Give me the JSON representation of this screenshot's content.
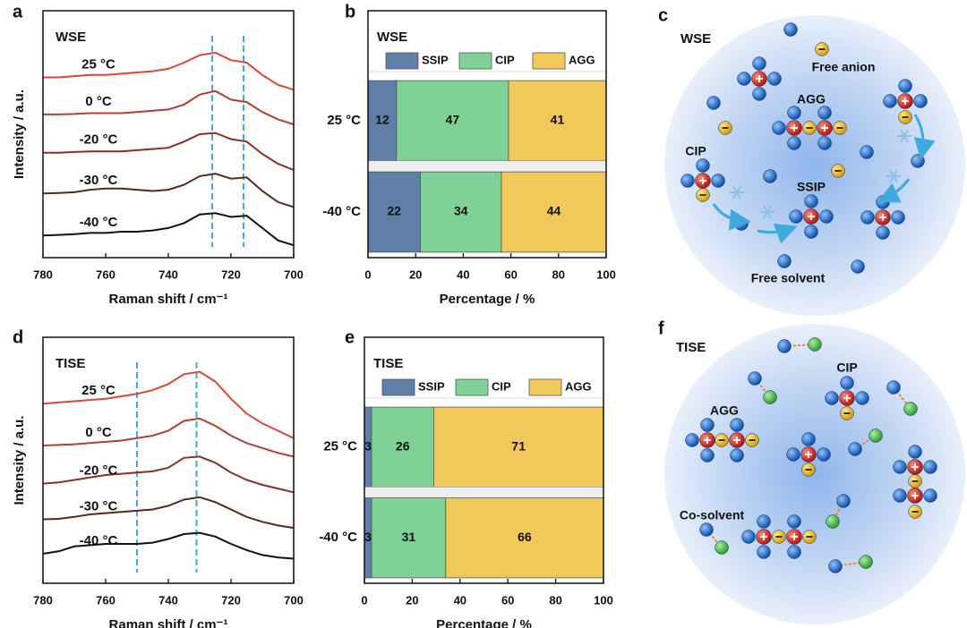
{
  "chart_data": [
    {
      "type": "line",
      "panel_label": "a",
      "annotation": "WSE",
      "xlabel": "Raman shift / cm⁻¹",
      "ylabel": "Intensity / a.u.",
      "x": [
        780,
        775,
        770,
        765,
        760,
        755,
        750,
        745,
        740,
        735,
        730,
        725,
        720,
        715,
        710,
        705,
        700
      ],
      "xlim": [
        780,
        700
      ],
      "xticks": [
        780,
        760,
        740,
        720,
        700
      ],
      "ylim": [
        0,
        10
      ],
      "vlines": [
        726,
        716
      ],
      "vline_color": "#3fa9e0",
      "series": [
        {
          "name": "25 °C",
          "color": "#d9473a",
          "values": [
            7.3,
            7.3,
            7.35,
            7.4,
            7.4,
            7.45,
            7.5,
            7.55,
            7.65,
            7.9,
            8.2,
            8.3,
            8.0,
            7.9,
            7.4,
            7.0,
            6.8
          ]
        },
        {
          "name": "0 °C",
          "color": "#b03f36",
          "values": [
            5.8,
            5.8,
            5.82,
            5.85,
            5.85,
            5.85,
            5.9,
            5.95,
            6.0,
            6.2,
            6.6,
            6.75,
            6.4,
            6.3,
            5.9,
            5.6,
            5.4
          ]
        },
        {
          "name": "-20 °C",
          "color": "#873029",
          "values": [
            4.25,
            4.25,
            4.28,
            4.3,
            4.3,
            4.3,
            4.35,
            4.4,
            4.45,
            4.7,
            5.0,
            5.05,
            4.8,
            4.7,
            4.2,
            3.8,
            3.55
          ]
        },
        {
          "name": "-30 °C",
          "color": "#57281f",
          "values": [
            2.6,
            2.62,
            2.65,
            2.75,
            2.8,
            2.8,
            2.75,
            2.7,
            2.75,
            2.95,
            3.3,
            3.4,
            3.2,
            3.25,
            2.7,
            2.25,
            2.05
          ]
        },
        {
          "name": "-40 °C",
          "color": "#111111",
          "values": [
            0.9,
            0.92,
            0.95,
            1.0,
            1.0,
            1.05,
            1.05,
            1.1,
            1.2,
            1.4,
            1.75,
            1.8,
            1.65,
            1.7,
            1.2,
            0.7,
            0.5
          ]
        }
      ]
    },
    {
      "type": "stacked_barh",
      "panel_label": "b",
      "annotation": "WSE",
      "xlabel": "Percentage / %",
      "categories": [
        "25 °C",
        "-40 °C"
      ],
      "xlim": [
        0,
        100
      ],
      "xticks": [
        0,
        20,
        40,
        60,
        80,
        100
      ],
      "series": [
        {
          "name": "SSIP",
          "color": "#5f7ea8",
          "values": [
            12,
            22
          ]
        },
        {
          "name": "CIP",
          "color": "#7fd197",
          "values": [
            47,
            34
          ]
        },
        {
          "name": "AGG",
          "color": "#f0c95a",
          "values": [
            41,
            44
          ]
        }
      ]
    },
    {
      "type": "line",
      "panel_label": "d",
      "annotation": "TISE",
      "xlabel": "Raman shift / cm⁻¹",
      "ylabel": "Intensity / a.u.",
      "x": [
        780,
        775,
        770,
        765,
        760,
        755,
        750,
        745,
        740,
        735,
        730,
        725,
        720,
        715,
        710,
        705,
        700
      ],
      "xlim": [
        780,
        700
      ],
      "xticks": [
        780,
        760,
        740,
        720,
        700
      ],
      "ylim": [
        0,
        10
      ],
      "vlines": [
        750,
        731
      ],
      "vline_color": "#3fa9e0",
      "series": [
        {
          "name": "25 °C",
          "color": "#d9473a",
          "values": [
            7.3,
            7.35,
            7.4,
            7.45,
            7.5,
            7.6,
            7.7,
            7.85,
            8.1,
            8.5,
            8.6,
            8.2,
            7.5,
            6.9,
            6.5,
            6.2,
            5.9
          ]
        },
        {
          "name": "0 °C",
          "color": "#b03f36",
          "values": [
            5.6,
            5.62,
            5.65,
            5.7,
            5.75,
            5.8,
            5.9,
            6.0,
            6.2,
            6.6,
            6.7,
            6.4,
            6.0,
            5.7,
            5.5,
            5.3,
            5.15
          ]
        },
        {
          "name": "-20 °C",
          "color": "#873029",
          "values": [
            4.05,
            4.1,
            4.2,
            4.3,
            4.4,
            4.45,
            4.5,
            4.55,
            4.7,
            5.1,
            5.15,
            4.9,
            4.5,
            4.2,
            4.0,
            3.85,
            3.7
          ]
        },
        {
          "name": "-30 °C",
          "color": "#57281f",
          "values": [
            2.6,
            2.62,
            2.7,
            2.8,
            2.85,
            2.9,
            2.95,
            3.0,
            3.15,
            3.4,
            3.5,
            3.3,
            3.0,
            2.7,
            2.5,
            2.35,
            2.25
          ]
        },
        {
          "name": "-40 °C",
          "color": "#111111",
          "values": [
            1.2,
            1.3,
            1.5,
            1.55,
            1.6,
            1.6,
            1.6,
            1.65,
            1.8,
            2.0,
            2.05,
            1.9,
            1.6,
            1.35,
            1.15,
            1.05,
            1.0
          ]
        }
      ]
    },
    {
      "type": "stacked_barh",
      "panel_label": "e",
      "annotation": "TISE",
      "xlabel": "Percentage / %",
      "categories": [
        "25 °C",
        "-40 °C"
      ],
      "xlim": [
        0,
        100
      ],
      "xticks": [
        0,
        20,
        40,
        60,
        80,
        100
      ],
      "series": [
        {
          "name": "SSIP",
          "color": "#5f7ea8",
          "values": [
            3,
            3
          ]
        },
        {
          "name": "CIP",
          "color": "#7fd197",
          "values": [
            26,
            31
          ]
        },
        {
          "name": "AGG",
          "color": "#f0c95a",
          "values": [
            71,
            66
          ]
        }
      ]
    }
  ],
  "diagrams": [
    {
      "panel_label": "c",
      "title": "WSE",
      "labels": [
        "Free anion",
        "AGG",
        "CIP",
        "SSIP",
        "Free solvent"
      ]
    },
    {
      "panel_label": "f",
      "title": "TISE",
      "labels": [
        "CIP",
        "AGG",
        "Co-solvent"
      ]
    }
  ]
}
